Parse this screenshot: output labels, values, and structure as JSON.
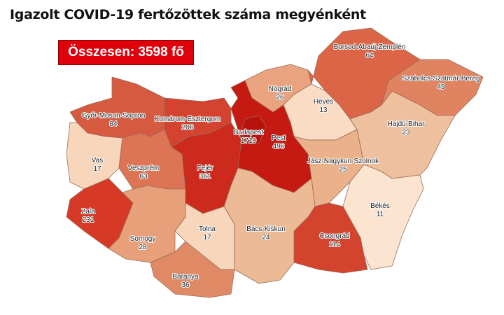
{
  "title": "Igazolt COVID-19 fertőzöttek száma megyénként",
  "total_label": "Összesen: 3598 fő",
  "colors": {
    "total_box": "#e0000b"
  },
  "counties": {
    "gyor": {
      "name": "Győr-Moson-Sopron",
      "value": "84",
      "color": "#d65a40"
    },
    "komarom": {
      "name": "Komárom-Esztergom",
      "value": "206",
      "color": "#d4432f"
    },
    "vas": {
      "name": "Vas",
      "value": "17",
      "color": "#f7d6bb"
    },
    "veszprem": {
      "name": "Veszprém",
      "value": "63",
      "color": "#dd7455"
    },
    "zala": {
      "name": "Zala",
      "value": "231",
      "color": "#d63a26"
    },
    "somogy": {
      "name": "Somogy",
      "value": "28",
      "color": "#e8a07a"
    },
    "fejer": {
      "name": "Fejér",
      "value": "361",
      "color": "#cc2a1c"
    },
    "tolna": {
      "name": "Tolna",
      "value": "17",
      "color": "#f7d6bb"
    },
    "baranya": {
      "name": "Baranya",
      "value": "36",
      "color": "#e08a65"
    },
    "pest": {
      "name": "Pest",
      "value": "496",
      "color": "#c41a12"
    },
    "budapest": {
      "name": "Budapest",
      "value": "1710",
      "color": "#b8120c"
    },
    "nograd": {
      "name": "Nógrád",
      "value": "26",
      "color": "#e9a47f"
    },
    "heves": {
      "name": "Heves",
      "value": "13",
      "color": "#f9dcc3"
    },
    "borsod": {
      "name": "Borsod-Abaúj-Zemplén",
      "value": "64",
      "color": "#dc6547"
    },
    "szabolcs": {
      "name": "Szabolcs-Szatmár-Bereg",
      "value": "49",
      "color": "#e08360"
    },
    "hajdu": {
      "name": "Hajdú-Bihar",
      "value": "23",
      "color": "#efc09d"
    },
    "jasz": {
      "name": "Jász-Nagykun-Szolnok",
      "value": "25",
      "color": "#eab18b"
    },
    "bekes": {
      "name": "Békés",
      "value": "11",
      "color": "#fbe4d0"
    },
    "csongrad": {
      "name": "Csongrád",
      "value": "114",
      "color": "#d4432e"
    },
    "bacs": {
      "name": "Bács-Kiskun",
      "value": "24",
      "color": "#edba96"
    }
  }
}
